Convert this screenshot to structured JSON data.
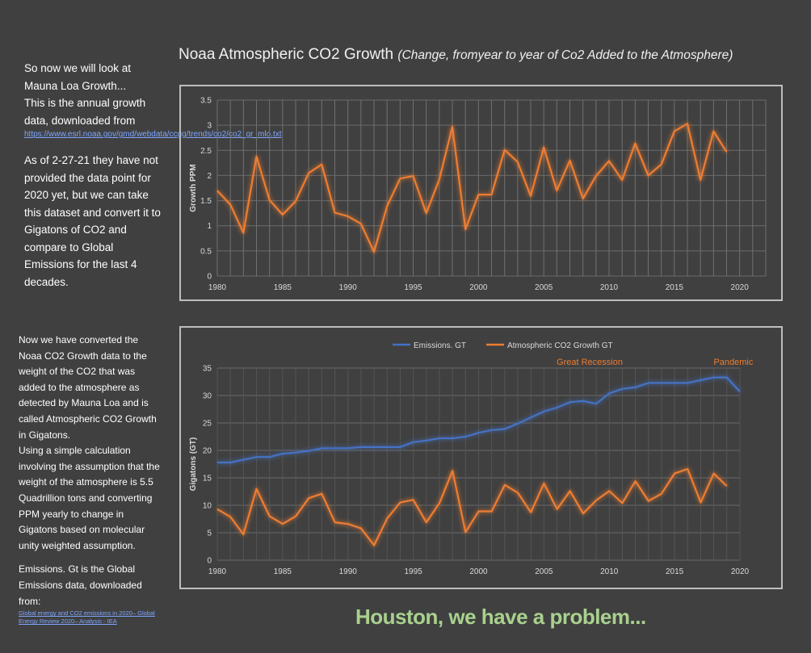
{
  "left_top": {
    "p1": "So now we will look at Mauna Loa Growth...",
    "p2": "This is the annual growth data, downloaded from",
    "link": "https://www.esrl.noaa.gov/gmd/webdata/ccgg/trends/co2/co2_gr_mlo.txt",
    "p3": "As of 2-27-21 they have not provided the data point for 2020 yet, but we can take this dataset and convert it to Gigatons of CO2 and compare to Global Emissions for the last 4 decades."
  },
  "left_bottom": {
    "p1": "Now we have converted the Noaa CO2 Growth data to the weight of the CO2 that was added to the atmosphere as detected by Mauna Loa and is called Atmospheric CO2 Growth in Gigatons.",
    "p2": "Using a simple calculation involving the assumption that the weight of the atmosphere is 5.5 Quadrillion tons and converting PPM yearly to change in Gigatons based on molecular unity weighted assumption.",
    "p3": "Emissions. Gt is the Global Emissions data, downloaded from:",
    "link": "Global energy and CO2 emissions in 2020– Global Energy Review 2020– Analysis - IEA"
  },
  "title": {
    "main": "Noaa Atmospheric CO2 Growth",
    "sub": "(Change, fromyear to year of Co2 Added to the Atmosphere)"
  },
  "footer": "Houston, we have a problem...",
  "chart_data": [
    {
      "type": "line",
      "ylabel": "Growth PPM",
      "xlabel": "",
      "ylim": [
        0,
        3.5
      ],
      "xlim": [
        1980,
        2022
      ],
      "yticks": [
        "0",
        "0.5",
        "1",
        "1.5",
        "2",
        "2.5",
        "3",
        "3.5"
      ],
      "xticks": [
        "1980",
        "1985",
        "1990",
        "1995",
        "2000",
        "2005",
        "2010",
        "2015",
        "2020"
      ],
      "grid": true,
      "series": [
        {
          "color": "#ed7d31",
          "x": [
            1980,
            1981,
            1982,
            1983,
            1984,
            1985,
            1986,
            1987,
            1988,
            1989,
            1990,
            1991,
            1992,
            1993,
            1994,
            1995,
            1996,
            1997,
            1998,
            1999,
            2000,
            2001,
            2002,
            2003,
            2004,
            2005,
            2006,
            2007,
            2008,
            2009,
            2010,
            2011,
            2012,
            2013,
            2014,
            2015,
            2016,
            2017,
            2018,
            2019
          ],
          "values": [
            1.7,
            1.42,
            0.86,
            2.38,
            1.51,
            1.22,
            1.49,
            2.05,
            2.22,
            1.26,
            1.19,
            1.04,
            0.48,
            1.39,
            1.94,
            1.99,
            1.25,
            1.92,
            2.97,
            0.93,
            1.62,
            1.62,
            2.51,
            2.27,
            1.59,
            2.56,
            1.7,
            2.3,
            1.54,
            1.99,
            2.29,
            1.91,
            2.64,
            2.0,
            2.22,
            2.88,
            3.03,
            1.91,
            2.88,
            2.47
          ]
        }
      ]
    },
    {
      "type": "line",
      "ylabel": "Gigatons (GT)",
      "xlabel": "",
      "ylim": [
        0,
        35
      ],
      "xlim": [
        1980,
        2020
      ],
      "yticks": [
        "0",
        "5",
        "10",
        "15",
        "20",
        "25",
        "30",
        "35"
      ],
      "xticks": [
        "1980",
        "1985",
        "1990",
        "1995",
        "2000",
        "2005",
        "2010",
        "2015",
        "2020"
      ],
      "grid": true,
      "legend_position": "top",
      "annotations": [
        {
          "text": "Great Recession",
          "x": 2008.5,
          "color": "#ed7d31"
        },
        {
          "text": "Pandemic",
          "x": 2019.5,
          "color": "#ed7d31"
        }
      ],
      "series": [
        {
          "name": "Emissions. GT",
          "color": "#4472c4",
          "x": [
            1980,
            1981,
            1982,
            1983,
            1984,
            1985,
            1986,
            1987,
            1988,
            1989,
            1990,
            1991,
            1992,
            1993,
            1994,
            1995,
            1996,
            1997,
            1998,
            1999,
            2000,
            2001,
            2002,
            2003,
            2004,
            2005,
            2006,
            2007,
            2008,
            2009,
            2010,
            2011,
            2012,
            2013,
            2014,
            2015,
            2016,
            2017,
            2018,
            2019,
            2020
          ],
          "values": [
            17.8,
            17.8,
            18.3,
            18.8,
            18.8,
            19.4,
            19.6,
            19.9,
            20.4,
            20.4,
            20.4,
            20.6,
            20.6,
            20.6,
            20.6,
            21.5,
            21.8,
            22.2,
            22.2,
            22.5,
            23.2,
            23.7,
            23.9,
            24.9,
            26.0,
            27.1,
            27.8,
            28.8,
            29.0,
            28.5,
            30.4,
            31.2,
            31.5,
            32.3,
            32.3,
            32.3,
            32.3,
            32.8,
            33.3,
            33.3,
            30.7
          ]
        },
        {
          "name": "Atmospheric CO2 Growth GT",
          "color": "#ed7d31",
          "x": [
            1980,
            1981,
            1982,
            1983,
            1984,
            1985,
            1986,
            1987,
            1988,
            1989,
            1990,
            1991,
            1992,
            1993,
            1994,
            1995,
            1996,
            1997,
            1998,
            1999,
            2000,
            2001,
            2002,
            2003,
            2004,
            2005,
            2006,
            2007,
            2008,
            2009,
            2010,
            2011,
            2012,
            2013,
            2014,
            2015,
            2016,
            2017,
            2018,
            2019
          ],
          "values": [
            9.3,
            7.9,
            4.7,
            13.0,
            8.0,
            6.6,
            8.0,
            11.3,
            12.1,
            6.9,
            6.6,
            5.8,
            2.7,
            7.6,
            10.5,
            11.0,
            6.9,
            10.4,
            16.3,
            5.1,
            8.9,
            8.9,
            13.7,
            12.3,
            8.7,
            14.0,
            9.3,
            12.6,
            8.5,
            10.9,
            12.6,
            10.4,
            14.4,
            10.8,
            12.1,
            15.8,
            16.6,
            10.5,
            15.8,
            13.5
          ]
        }
      ]
    }
  ]
}
